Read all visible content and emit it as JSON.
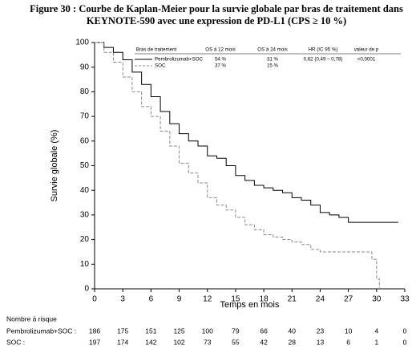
{
  "chart_data": {
    "type": "line",
    "title": [
      "Figure 30 : Courbe de Kaplan-Meier pour la survie globale par bras de traitement dans",
      "KEYNOTE-590 avec une expression de PD-L1 (CPS ≥ 10 %)"
    ],
    "x_label": "Temps en mois",
    "y_label": "Survie globale (%)",
    "xlim": [
      0,
      33
    ],
    "ylim": [
      0,
      100
    ],
    "xticks": [
      0,
      3,
      6,
      9,
      12,
      15,
      18,
      21,
      24,
      27,
      30,
      33
    ],
    "yticks": [
      0,
      10,
      20,
      30,
      40,
      50,
      60,
      70,
      80,
      90,
      100
    ],
    "step": true,
    "series": [
      {
        "name": "Pembrolizumab+SOC",
        "color": "#000000",
        "dashed": false,
        "x": [
          0,
          1,
          2,
          3,
          4,
          5,
          6,
          7,
          8,
          9,
          10,
          11,
          12,
          13,
          14,
          15,
          16,
          17,
          18,
          19,
          20,
          21,
          22,
          23,
          24,
          25,
          26,
          27,
          32.3
        ],
        "values": [
          100,
          98,
          96,
          93,
          88,
          83,
          78,
          72,
          67,
          63,
          60,
          58,
          54,
          53,
          50,
          46,
          44,
          42,
          41,
          40,
          39,
          37,
          36,
          34,
          31,
          30,
          29,
          27,
          27
        ]
      },
      {
        "name": "SOC",
        "color": "#888888",
        "dashed": true,
        "x": [
          0,
          1,
          2,
          3,
          4,
          5,
          6,
          7,
          8,
          9,
          10,
          11,
          12,
          13,
          14,
          15,
          16,
          17,
          18,
          19,
          20,
          21,
          22,
          23,
          24,
          28,
          29.5,
          30,
          30.3
        ],
        "values": [
          100,
          96,
          92,
          86,
          80,
          74,
          70,
          64,
          58,
          51,
          47,
          43,
          37,
          34,
          32,
          29,
          26,
          24,
          22,
          21,
          20,
          19,
          18,
          16,
          15,
          15,
          12,
          4,
          0
        ]
      }
    ],
    "legend_table": {
      "headers": [
        "Bras de traitement",
        "OS à 12 mois",
        "OS à 24 mois",
        "HR (IC 95 %)",
        "valeur de p"
      ],
      "rows": [
        [
          "54 %",
          "31 %",
          "0,62 (0,49 – 0,78)",
          "<0,0001"
        ],
        [
          "37 %",
          "15 %"
        ]
      ]
    },
    "risk_table": {
      "title": "Nombre à risque",
      "rows": [
        {
          "label": "Pembrolizumab+SOC :",
          "values": [
            186,
            175,
            151,
            125,
            100,
            79,
            66,
            40,
            23,
            10,
            4,
            0
          ]
        },
        {
          "label": "SOC :",
          "values": [
            197,
            174,
            142,
            102,
            73,
            55,
            42,
            28,
            13,
            6,
            1,
            0
          ]
        }
      ]
    }
  }
}
